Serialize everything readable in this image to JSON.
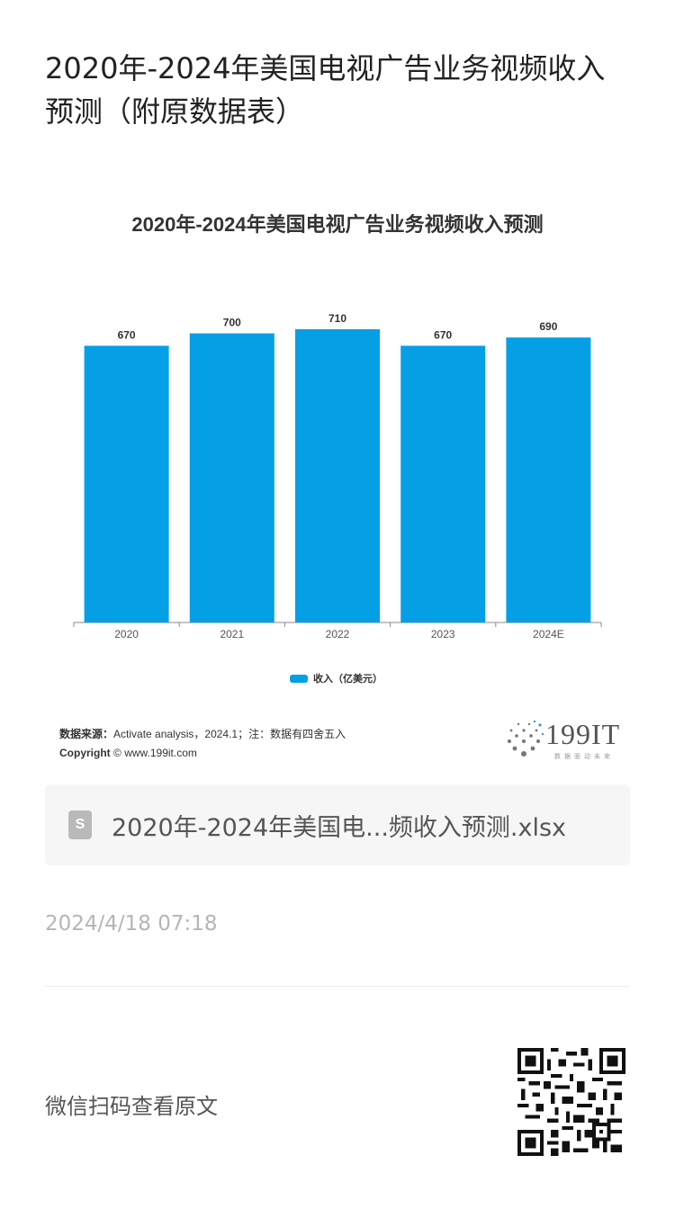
{
  "article": {
    "title": "2020年-2024年美国电视广告业务视频收入预测（附原数据表）"
  },
  "chart_data": {
    "type": "bar",
    "title": "2020年-2024年美国电视广告业务视频收入预测",
    "categories": [
      "2020",
      "2021",
      "2022",
      "2023",
      "2024E"
    ],
    "series": [
      {
        "name": "收入（亿美元）",
        "values": [
          670,
          700,
          710,
          670,
          690
        ]
      }
    ],
    "value_labels": [
      "670",
      "700",
      "710",
      "670",
      "690"
    ],
    "ylim": [
      0,
      710
    ],
    "grid": false,
    "legend_position": "bottom",
    "bar_color": "#049fe5"
  },
  "source": {
    "label": "数据来源：",
    "text": "Activate analysis，2024.1；注：数据有四舍五入",
    "copyright_label": "Copyright",
    "copyright_text": "© www.199it.com"
  },
  "logo": {
    "brand": "199IT",
    "tagline": "数据驱动未来"
  },
  "attachment": {
    "file_name": "2020年-2024年美国电...频收入预测.xlsx",
    "icon": "spreadsheet-file-icon"
  },
  "meta": {
    "timestamp": "2024/4/18 07:18",
    "read_original": "微信扫码查看原文"
  },
  "colors": {
    "accent": "#049fe5",
    "muted_text": "#b5b5b5"
  }
}
